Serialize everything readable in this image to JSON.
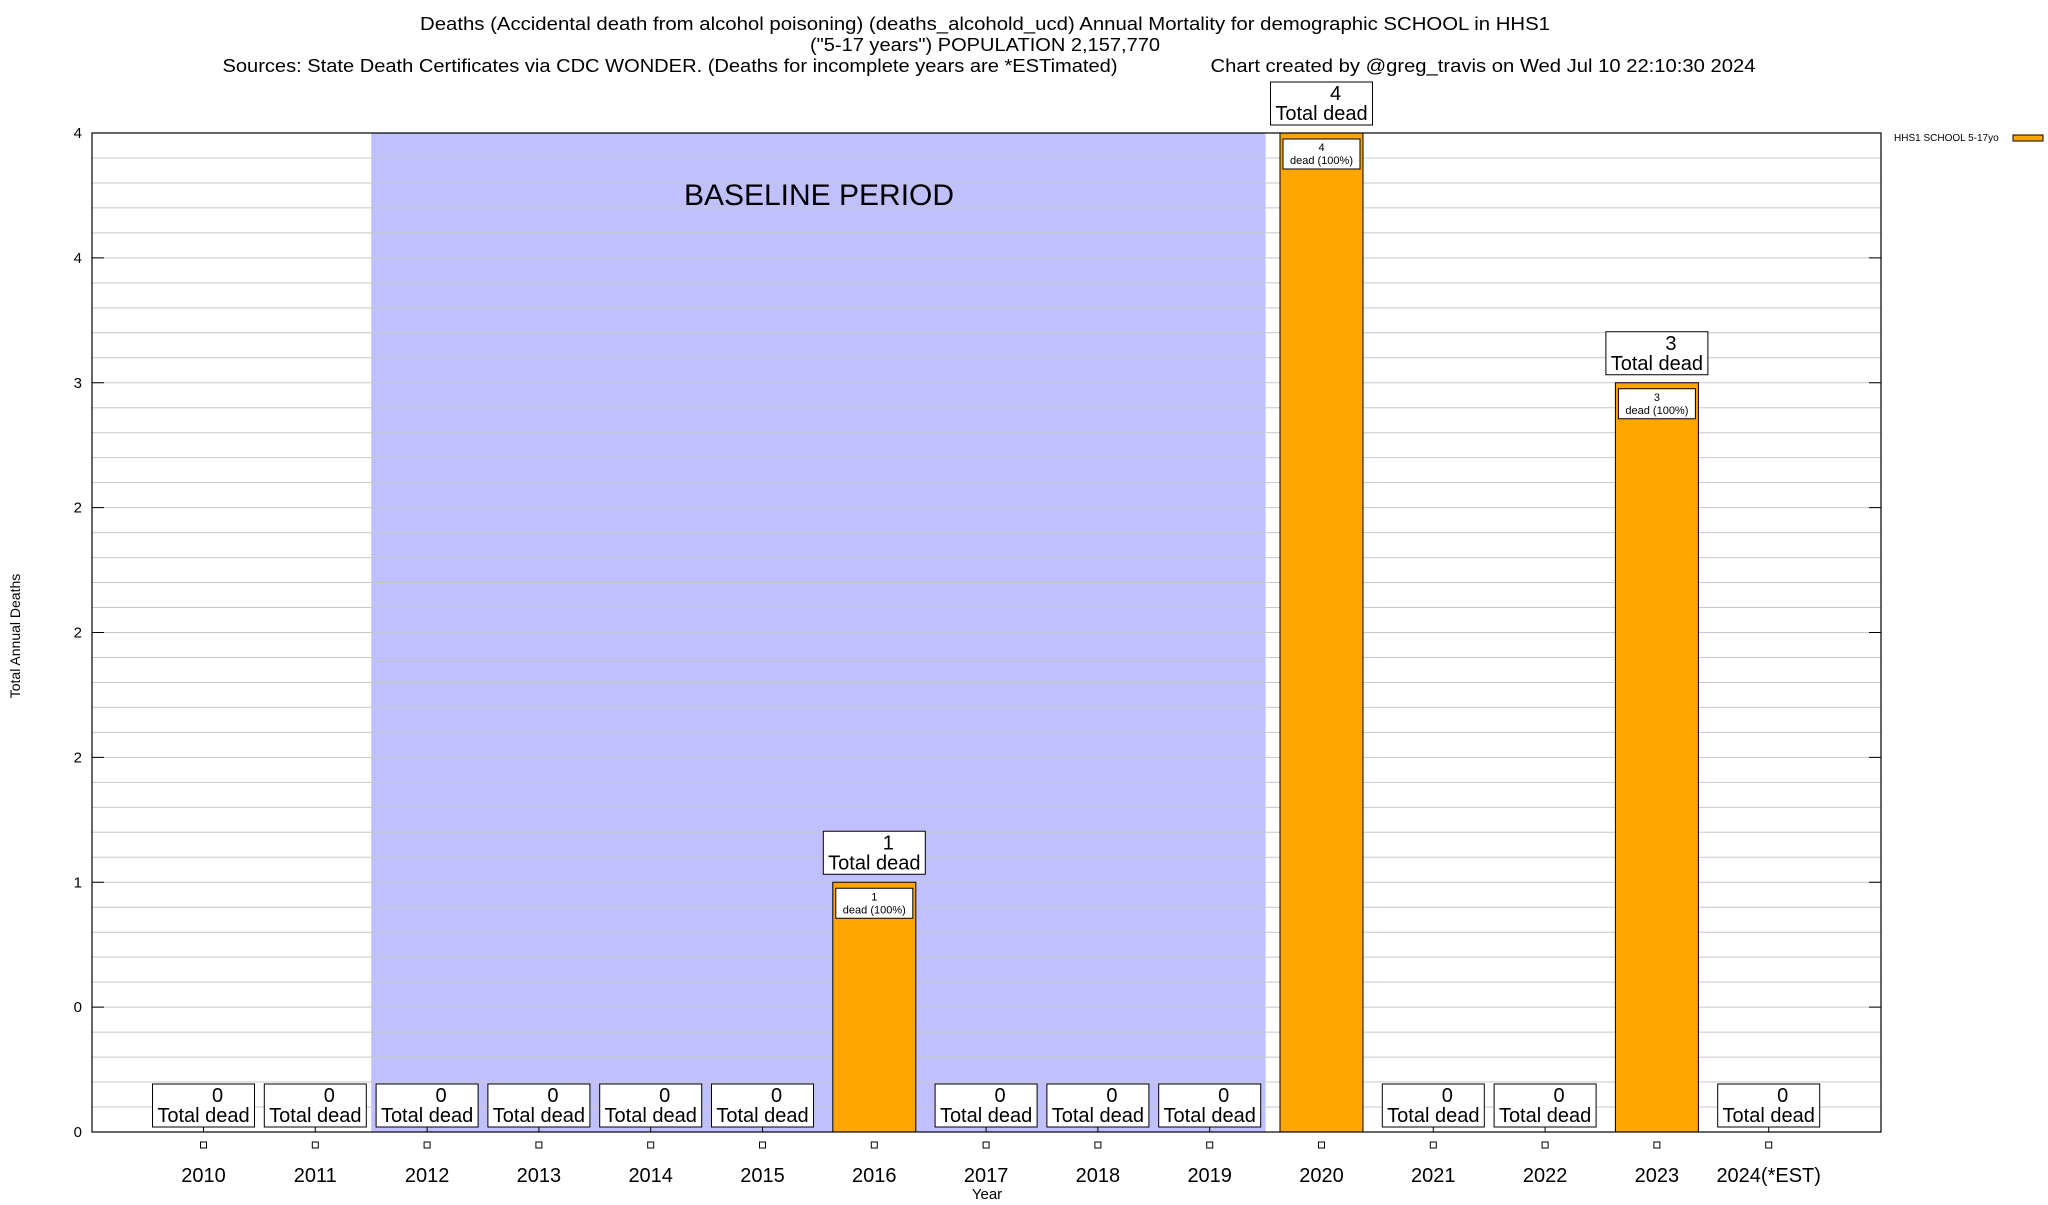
{
  "chart_data": {
    "type": "bar",
    "title_lines": [
      "Deaths (Accidental death from alcohol poisoning) (deaths_alcohold_ucd) Annual Mortality for demographic SCHOOL in HHS1",
      "(\"5-17 years\") POPULATION 2,157,770"
    ],
    "sources": "Sources: State Death Certificates via CDC WONDER. (Deaths for incomplete years are *ESTimated)",
    "credit": "Chart created by @greg_travis on Wed Jul 10 22:10:30 2024",
    "xlabel": "Year",
    "ylabel": "Total Annual Deaths",
    "ylim": [
      0,
      4
    ],
    "yticks": [
      0,
      0.5,
      1,
      1.5,
      2,
      2.5,
      3,
      3.5,
      4
    ],
    "ytick_labels": [
      "0",
      "0",
      "1",
      "2",
      "2",
      "2",
      "3",
      "4",
      "4"
    ],
    "grid": true,
    "categories": [
      "2010",
      "2011",
      "2012",
      "2013",
      "2014",
      "2015",
      "2016",
      "2017",
      "2018",
      "2019",
      "2020",
      "2021",
      "2022",
      "2023",
      "2024(*EST)"
    ],
    "series": [
      {
        "name": "HHS1 SCHOOL 5-17yo",
        "color": "#FFA500",
        "values": [
          0,
          0,
          0,
          0,
          0,
          0,
          1,
          0,
          0,
          0,
          4,
          0,
          0,
          3,
          0
        ]
      }
    ],
    "total_label_suffix": "Total dead",
    "inner_label_suffix": "dead (100%)",
    "baseline": {
      "label": "BASELINE PERIOD",
      "from": "2012",
      "to": "2019",
      "color": "#C0C0FF"
    },
    "legend_placement": "top-right outside"
  }
}
